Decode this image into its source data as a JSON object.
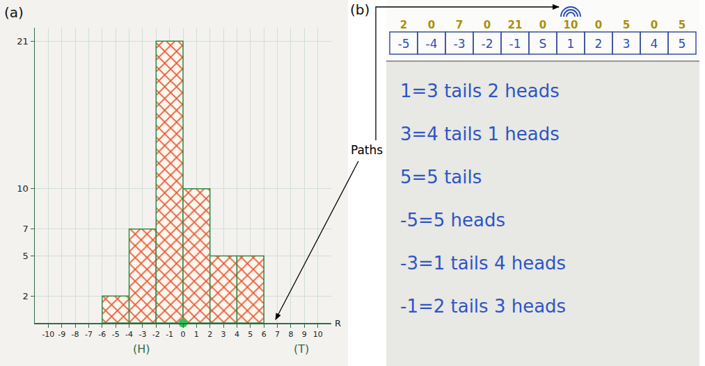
{
  "chart_data": {
    "type": "histogram",
    "bins": [
      -6,
      -4,
      -2,
      0,
      2,
      4,
      6
    ],
    "counts": [
      2,
      7,
      21,
      10,
      5,
      5
    ],
    "color": "#e8532f",
    "xlim": [
      -11,
      11
    ],
    "xticks": [
      -10,
      -9,
      -8,
      -7,
      -6,
      -5,
      -4,
      -3,
      -2,
      -1,
      0,
      1,
      2,
      3,
      4,
      5,
      6,
      7,
      8,
      9,
      10
    ],
    "ylim": [
      0,
      22
    ],
    "yticks": [
      2,
      5,
      7,
      10,
      21
    ],
    "grid": true,
    "start": 0,
    "annotations": [
      "R",
      "(H)",
      "(T)"
    ]
  },
  "panel_labels": [
    "(a)",
    "(b)"
  ],
  "callout": "Paths",
  "whiteboard": {
    "number_line": [
      "-5",
      "-4",
      "-3",
      "-2",
      "-1",
      "S",
      "1",
      "2",
      "3",
      "4",
      "5"
    ],
    "counts": [
      2,
      0,
      7,
      0,
      21,
      0,
      10,
      0,
      5,
      0,
      5
    ],
    "notes": [
      "1=3 tails 2 heads",
      "3=4 tails 1 heads",
      "5=5 tails",
      "-5=5 heads",
      "-3=1 tails 4 heads",
      "-1=2 tails 3 heads"
    ]
  }
}
